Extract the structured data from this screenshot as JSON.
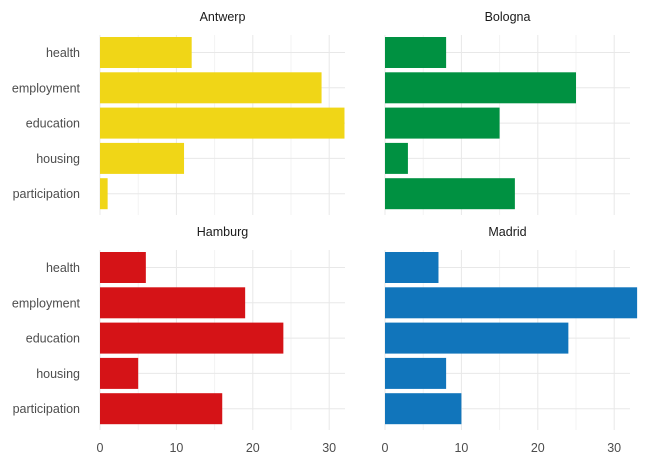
{
  "chart_data": {
    "type": "bar",
    "orientation": "horizontal",
    "facet_layout": "2x2",
    "categories": [
      "health",
      "employment",
      "education",
      "housing",
      "participation"
    ],
    "xlim": [
      0,
      34
    ],
    "x_ticks": [
      0,
      10,
      20,
      30
    ],
    "grid": true,
    "legend": "none",
    "panels": [
      {
        "name": "Antwerp",
        "color": "#F0D617",
        "values": [
          12,
          29,
          32,
          11,
          1
        ]
      },
      {
        "name": "Bologna",
        "color": "#009141",
        "values": [
          8,
          25,
          15,
          3,
          17
        ]
      },
      {
        "name": "Hamburg",
        "color": "#D51317",
        "values": [
          6,
          19,
          24,
          5,
          16
        ]
      },
      {
        "name": "Madrid",
        "color": "#1175BB",
        "values": [
          7,
          33,
          24,
          8,
          10
        ]
      }
    ]
  }
}
